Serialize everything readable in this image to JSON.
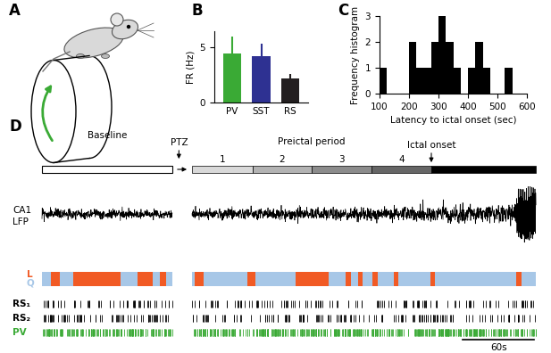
{
  "panel_labels": [
    "A",
    "B",
    "C",
    "D"
  ],
  "chart_data": [
    {
      "type": "bar",
      "categories": [
        "PV",
        "SST",
        "RS"
      ],
      "values": [
        4.5,
        4.2,
        2.2
      ],
      "error": [
        1.5,
        1.2,
        0.4
      ],
      "colors": [
        "#3aaa35",
        "#2e3192",
        "#231f20"
      ],
      "ylabel": "FR (Hz)",
      "ylim": [
        0,
        6.5
      ],
      "yticks": [
        0,
        5
      ]
    },
    {
      "type": "histogram",
      "bins": [
        100,
        125,
        150,
        175,
        200,
        225,
        250,
        275,
        300,
        325,
        350,
        375,
        400,
        425,
        450,
        475,
        500,
        525,
        550
      ],
      "counts": [
        1,
        0,
        0,
        0,
        2,
        1,
        1,
        2,
        3,
        2,
        1,
        0,
        1,
        2,
        1,
        0,
        0,
        1
      ],
      "color": "#000000",
      "xlabel": "Latency to ictal onset (sec)",
      "ylabel": "Frequency histogram",
      "xlim": [
        100,
        600
      ],
      "xticks": [
        100,
        200,
        300,
        400,
        500,
        600
      ],
      "ylim": [
        0,
        3
      ],
      "yticks": [
        0,
        1,
        2,
        3
      ]
    }
  ],
  "panel_D": {
    "timeline": {
      "baseline_label": "Baseline",
      "baseline": [
        0,
        109.5
      ],
      "ptz_label": "PTZ",
      "ptz_time": 115,
      "preictal_label": "Preictal period",
      "preictal_segments": [
        {
          "label": "1",
          "range": [
            126,
            177
          ],
          "color": "#d9d9d9"
        },
        {
          "label": "2",
          "range": [
            177,
            226.5
          ],
          "color": "#b3b3b3"
        },
        {
          "label": "3",
          "range": [
            226.5,
            277
          ],
          "color": "#8c8c8c"
        },
        {
          "label": "4",
          "range": [
            277,
            327
          ],
          "color": "#666666"
        }
      ],
      "ictal_label": "Ictal onset",
      "ictal_onset": 327,
      "end": 415
    },
    "lfp": {
      "label_lines": [
        "CA1",
        "LFP"
      ],
      "burst": [
        396,
        415
      ]
    },
    "state": {
      "L": "L",
      "Q": "Q",
      "L_color": "#f15a24",
      "Q_color": "#a7c7e7",
      "locomotion_periods": [
        [
          7.5,
          15
        ],
        [
          26,
          66
        ],
        [
          80,
          93
        ],
        [
          99,
          104
        ],
        [
          128,
          136
        ],
        [
          172.5,
          179
        ],
        [
          213,
          241
        ],
        [
          255,
          259.5
        ],
        [
          265.5,
          269
        ],
        [
          277.5,
          282
        ],
        [
          295.5,
          299
        ],
        [
          326,
          330
        ],
        [
          398,
          403
        ]
      ]
    },
    "rasters": [
      {
        "label": "RS₁",
        "color": "#000000"
      },
      {
        "label": "RS₂",
        "color": "#000000"
      },
      {
        "label": "PV",
        "color": "#3aaa35"
      }
    ],
    "scale_bar": {
      "label": "60s",
      "length": 60
    }
  }
}
